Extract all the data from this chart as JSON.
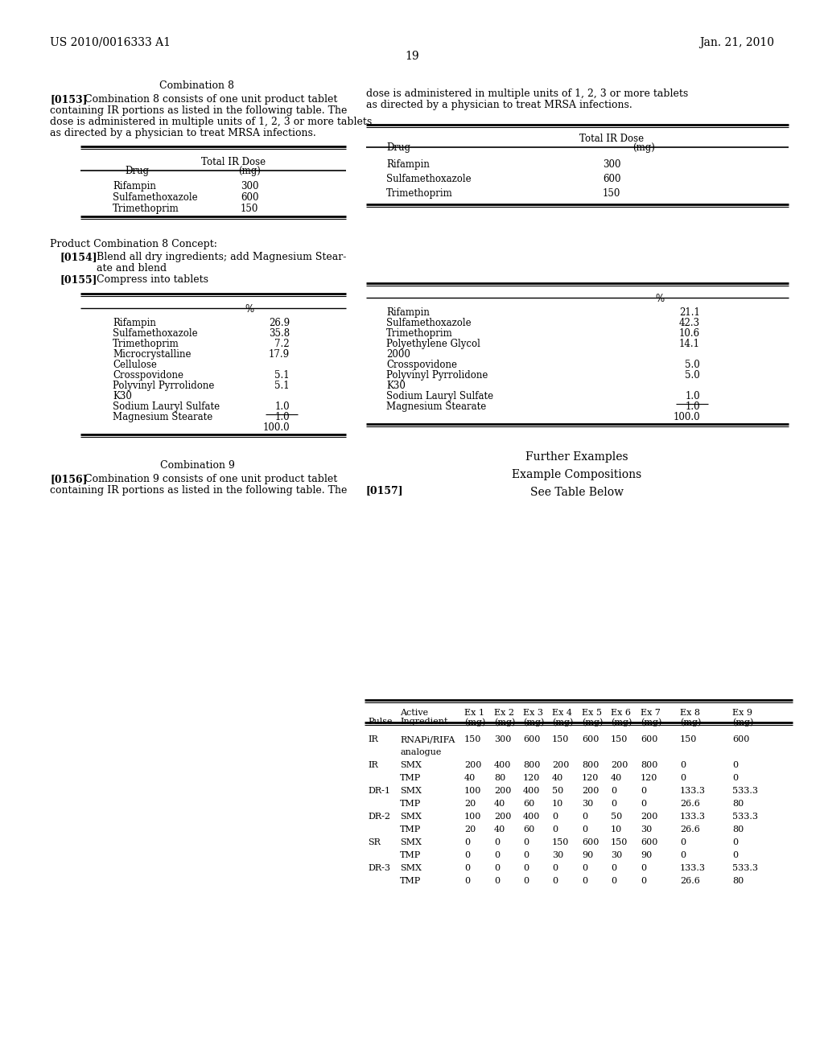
{
  "header_left": "US 2010/0016333 A1",
  "header_right": "Jan. 21, 2010",
  "page_number": "19",
  "background_color": "#ffffff",
  "text_color": "#000000"
}
